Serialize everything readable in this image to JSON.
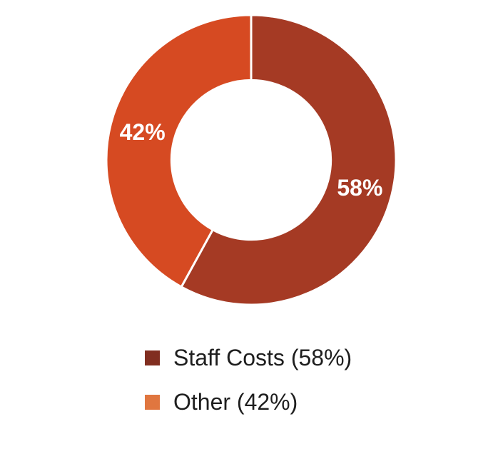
{
  "chart_data": {
    "type": "pie",
    "subtype": "donut",
    "title": "",
    "series": [
      {
        "name": "Staff Costs",
        "value": 58,
        "slice_label": "58%",
        "legend_label": "Staff Costs (58%)",
        "slice_color": "#A53A24",
        "legend_color": "#812E20"
      },
      {
        "name": "Other",
        "value": 42,
        "slice_label": "42%",
        "legend_label": "Other (42%)",
        "slice_color": "#D64A22",
        "legend_color": "#E0763F"
      }
    ],
    "start_angle_deg": 0,
    "direction": "clockwise",
    "donut_hole_ratio": 0.55,
    "slice_label_color": "#FFFFFF",
    "slice_divider_color": "#FFFFFF",
    "legend_text_color": "#1E1E1E",
    "background_color": "#FFFFFF",
    "legend_position": "bottom-left",
    "grid": false
  }
}
